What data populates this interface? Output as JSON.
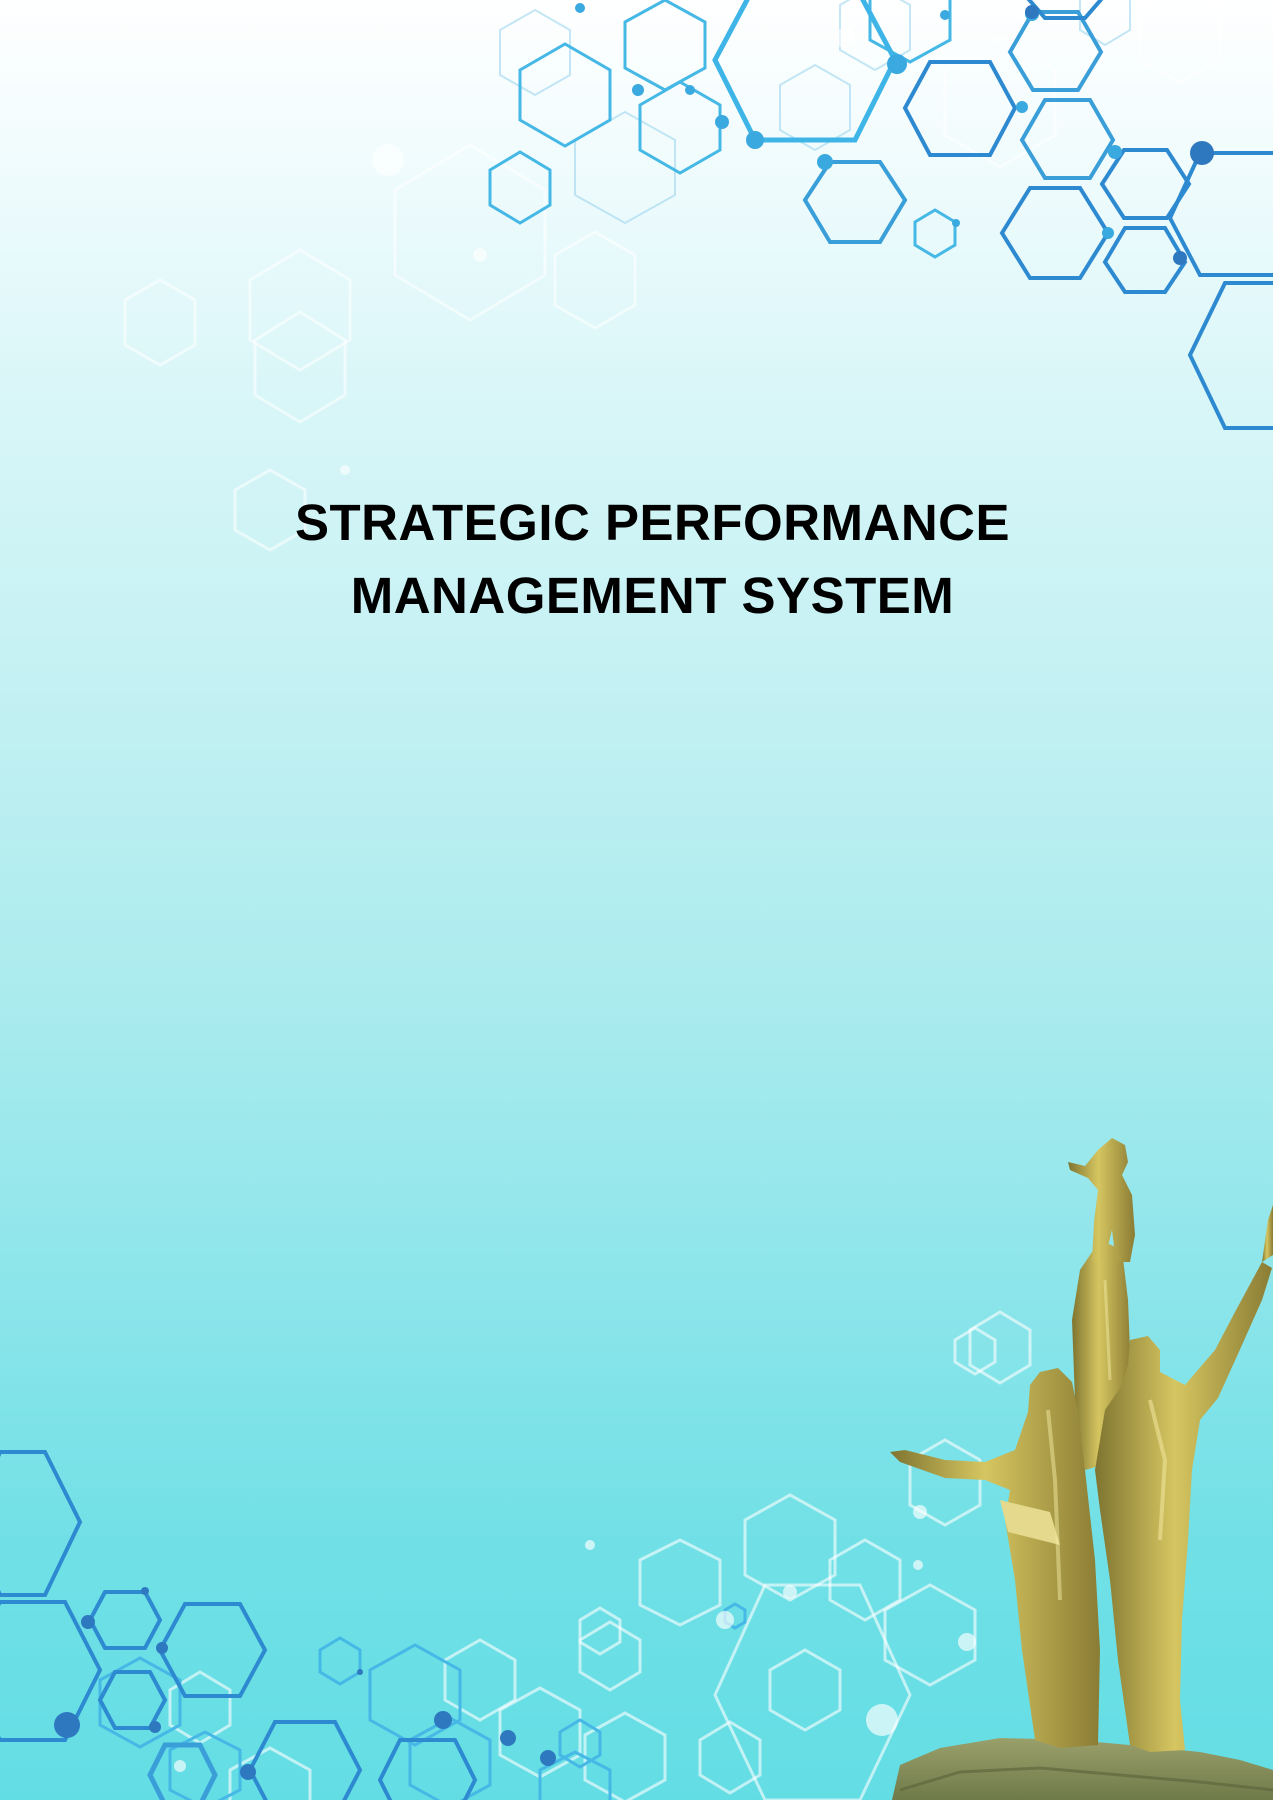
{
  "document": {
    "title_lines": [
      "STRATEGIC PERFORMANCE",
      "MANAGEMENT SYSTEM"
    ]
  },
  "colors": {
    "hex_dark": "#2a7fc4",
    "hex_mid": "#3ab4e6",
    "hex_light": "#ffffff",
    "statue_gold": "#b6a447"
  },
  "decorations": {
    "top_pattern": "hexagon-network",
    "bottom_pattern": "hexagon-network",
    "statue": "golden-monument-statue"
  }
}
